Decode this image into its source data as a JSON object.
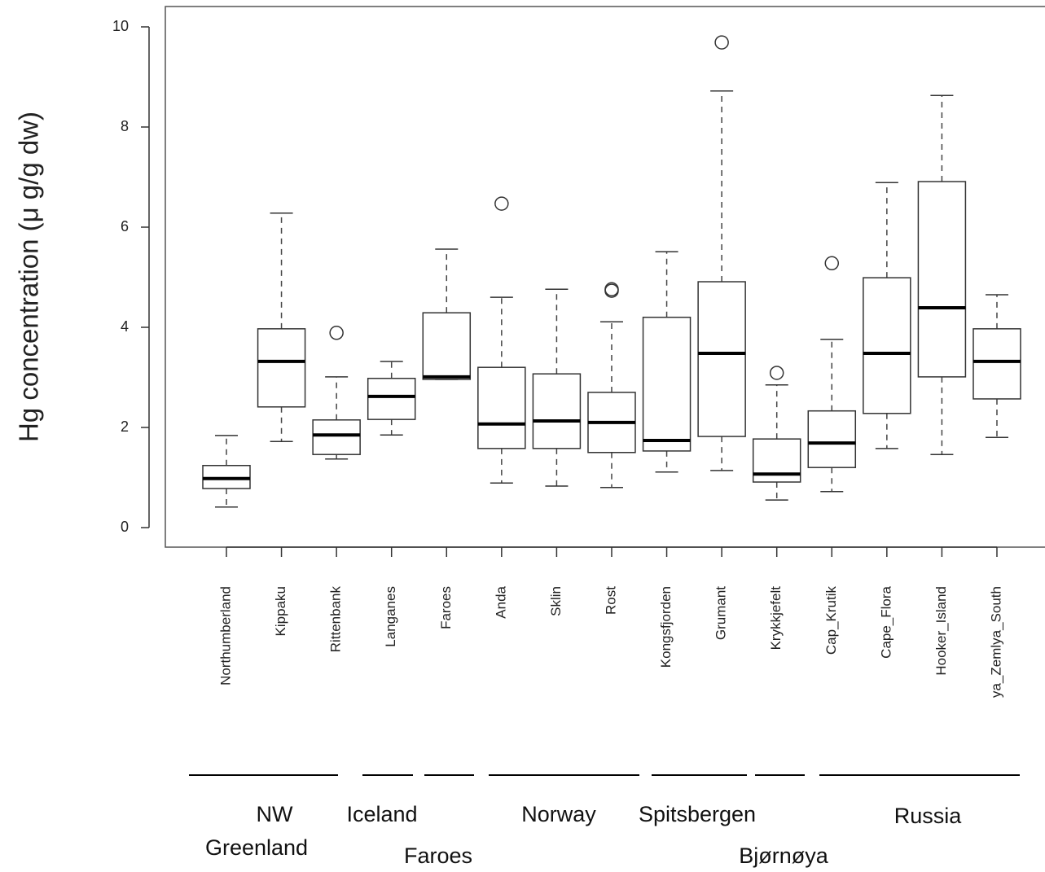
{
  "chart_data": {
    "type": "box",
    "ylabel": "Hg concentration (μ g/g  dw)",
    "ylim": [
      0,
      10
    ],
    "yticks": [
      0,
      2,
      4,
      6,
      8,
      10
    ],
    "categories": [
      "Northumberland",
      "Kippaku",
      "Rittenbank",
      "Langanes",
      "Faroes",
      "Anda",
      "Sklin",
      "Rost",
      "Kongsfjorden",
      "Grumant",
      "Krykkjefelt",
      "Cap_Krutik",
      "Cape_Flora",
      "Hooker_Island",
      "ya_Zemlya_South"
    ],
    "boxes": [
      {
        "low": 0.41,
        "q1": 0.78,
        "median": 0.98,
        "q3": 1.24,
        "high": 1.84,
        "outliers": []
      },
      {
        "low": 1.72,
        "q1": 2.41,
        "median": 3.32,
        "q3": 3.97,
        "high": 6.28,
        "outliers": []
      },
      {
        "low": 1.37,
        "q1": 1.46,
        "median": 1.85,
        "q3": 2.15,
        "high": 3.01,
        "outliers": [
          3.89
        ]
      },
      {
        "low": 1.85,
        "q1": 2.16,
        "median": 2.62,
        "q3": 2.98,
        "high": 3.32,
        "outliers": []
      },
      {
        "low": 2.96,
        "q1": 2.96,
        "median": 3.01,
        "q3": 4.29,
        "high": 5.56,
        "outliers": []
      },
      {
        "low": 0.89,
        "q1": 1.58,
        "median": 2.07,
        "q3": 3.2,
        "high": 4.6,
        "outliers": [
          6.47
        ]
      },
      {
        "low": 0.83,
        "q1": 1.58,
        "median": 2.13,
        "q3": 3.07,
        "high": 4.76,
        "outliers": []
      },
      {
        "low": 0.8,
        "q1": 1.5,
        "median": 2.1,
        "q3": 2.7,
        "high": 4.11,
        "outliers": [
          4.76,
          4.73
        ]
      },
      {
        "low": 1.11,
        "q1": 1.53,
        "median": 1.74,
        "q3": 4.2,
        "high": 5.51,
        "outliers": []
      },
      {
        "low": 1.14,
        "q1": 1.82,
        "median": 3.48,
        "q3": 4.91,
        "high": 8.72,
        "outliers": [
          9.69
        ]
      },
      {
        "low": 0.55,
        "q1": 0.91,
        "median": 1.07,
        "q3": 1.77,
        "high": 2.85,
        "outliers": [
          3.09
        ]
      },
      {
        "low": 0.72,
        "q1": 1.2,
        "median": 1.69,
        "q3": 2.33,
        "high": 3.76,
        "outliers": [
          5.28
        ]
      },
      {
        "low": 1.58,
        "q1": 2.28,
        "median": 3.48,
        "q3": 4.99,
        "high": 6.89,
        "outliers": []
      },
      {
        "low": 1.46,
        "q1": 3.01,
        "median": 4.39,
        "q3": 6.91,
        "high": 8.63,
        "outliers": []
      },
      {
        "low": 1.8,
        "q1": 2.57,
        "median": 3.32,
        "q3": 3.97,
        "high": 4.65,
        "outliers": []
      }
    ],
    "regions": [
      {
        "lines": [
          "NW",
          "Greenland"
        ]
      },
      {
        "lines": [
          "Iceland"
        ]
      },
      {
        "lines": [
          "Faroes"
        ]
      },
      {
        "lines": [
          "Norway"
        ]
      },
      {
        "lines": [
          "Spitsbergen"
        ]
      },
      {
        "lines": [
          "Bjørnøya"
        ]
      },
      {
        "lines": [
          "Russia"
        ]
      }
    ]
  }
}
